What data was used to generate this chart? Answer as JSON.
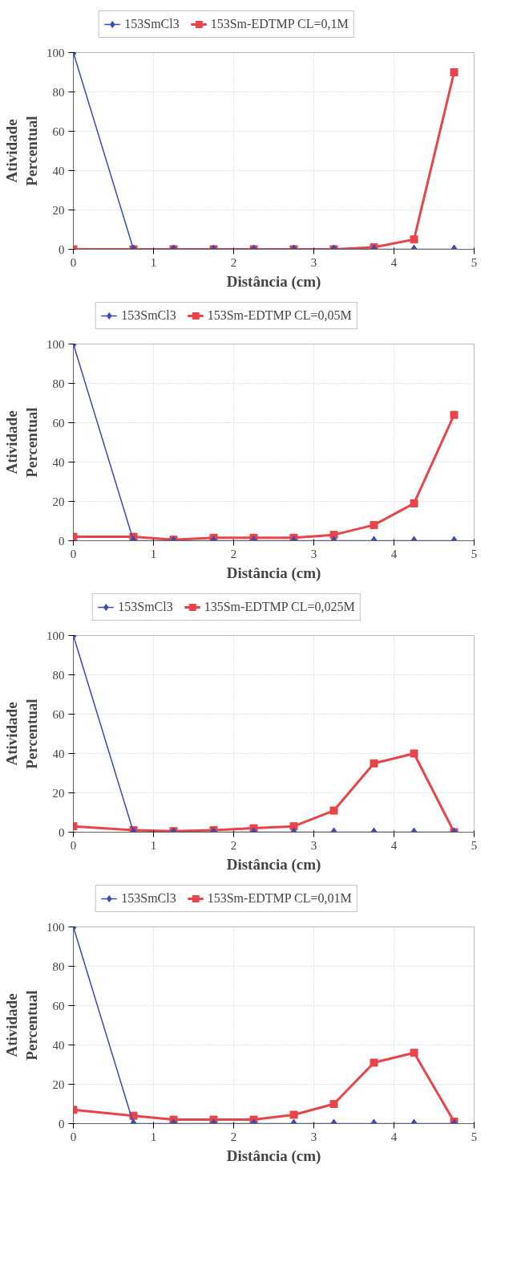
{
  "chart_data": [
    {
      "type": "line",
      "x": [
        0,
        0.75,
        1.25,
        1.75,
        2.25,
        2.75,
        3.25,
        3.75,
        4.25,
        4.75
      ],
      "xlabel": "Distância (cm)",
      "ylabel": "Atividade Percentual",
      "xlim": [
        0,
        5
      ],
      "ylim": [
        0,
        100
      ],
      "xticks": [
        0,
        1,
        2,
        3,
        4,
        5
      ],
      "yticks": [
        0,
        20,
        40,
        60,
        80,
        100
      ],
      "grid": true,
      "legend": "top",
      "series": [
        {
          "name": "153SmCl3",
          "color": "#3b4ab5",
          "marker": "diamond",
          "values": [
            100,
            0,
            0,
            0,
            0,
            0,
            0,
            0,
            0,
            0
          ]
        },
        {
          "name": "153Sm-EDTMP CL=0,1M",
          "color": "#e8454a",
          "marker": "square",
          "values": [
            0,
            0,
            0,
            0,
            0,
            0,
            0,
            1,
            5,
            90
          ]
        }
      ]
    },
    {
      "type": "line",
      "x": [
        0,
        0.75,
        1.25,
        1.75,
        2.25,
        2.75,
        3.25,
        3.75,
        4.25,
        4.75
      ],
      "xlabel": "Distância (cm)",
      "ylabel": "Atividade Percentual",
      "xlim": [
        0,
        5
      ],
      "ylim": [
        0,
        100
      ],
      "xticks": [
        0,
        1,
        2,
        3,
        4,
        5
      ],
      "yticks": [
        0,
        20,
        40,
        60,
        80,
        100
      ],
      "grid": true,
      "legend": "top",
      "series": [
        {
          "name": "153SmCl3",
          "color": "#3b4ab5",
          "marker": "diamond",
          "values": [
            100,
            0,
            0,
            0,
            0,
            0,
            0,
            0,
            0,
            0
          ]
        },
        {
          "name": "153Sm-EDTMP CL=0,05M",
          "color": "#e8454a",
          "marker": "square",
          "values": [
            2,
            2,
            0.5,
            1.5,
            1.5,
            1.5,
            3,
            8,
            19,
            64
          ]
        }
      ]
    },
    {
      "type": "line",
      "x": [
        0,
        0.75,
        1.25,
        1.75,
        2.25,
        2.75,
        3.25,
        3.75,
        4.25,
        4.75
      ],
      "xlabel": "Distância (cm)",
      "ylabel": "Atividade Percentual",
      "xlim": [
        0,
        5
      ],
      "ylim": [
        0,
        100
      ],
      "xticks": [
        0,
        1,
        2,
        3,
        4,
        5
      ],
      "yticks": [
        0,
        20,
        40,
        60,
        80,
        100
      ],
      "grid": true,
      "legend": "top",
      "series": [
        {
          "name": "153SmCl3",
          "color": "#3b4ab5",
          "marker": "diamond",
          "values": [
            100,
            0,
            0,
            0,
            0,
            0,
            0,
            0,
            0,
            0
          ]
        },
        {
          "name": "135Sm-EDTMP CL=0,025M",
          "color": "#e8454a",
          "marker": "square",
          "values": [
            3,
            1,
            0.5,
            1,
            2,
            3,
            11,
            35,
            40,
            0
          ]
        }
      ]
    },
    {
      "type": "line",
      "x": [
        0,
        0.75,
        1.25,
        1.75,
        2.25,
        2.75,
        3.25,
        3.75,
        4.25,
        4.75
      ],
      "xlabel": "Distância (cm)",
      "ylabel": "Atividade Percentual",
      "xlim": [
        0,
        5
      ],
      "ylim": [
        0,
        100
      ],
      "xticks": [
        0,
        1,
        2,
        3,
        4,
        5
      ],
      "yticks": [
        0,
        20,
        40,
        60,
        80,
        100
      ],
      "grid": true,
      "legend": "top",
      "series": [
        {
          "name": "153SmCl3",
          "color": "#3b4ab5",
          "marker": "diamond",
          "values": [
            100,
            0,
            0,
            0,
            0,
            0,
            0,
            0,
            0,
            0
          ]
        },
        {
          "name": "153Sm-EDTMP CL=0,01M",
          "color": "#e8454a",
          "marker": "square",
          "values": [
            7,
            4,
            2,
            2,
            2,
            4.5,
            10,
            31,
            36,
            1
          ]
        }
      ]
    }
  ]
}
